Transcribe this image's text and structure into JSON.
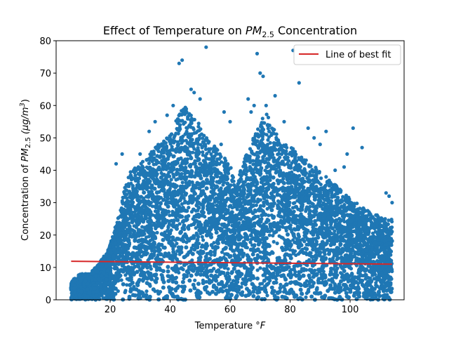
{
  "chart_data": {
    "type": "scatter",
    "title_main": "Effect of Temperature on ",
    "title_var": "PM",
    "title_sub": "2.5",
    "title_tail": " Concentration",
    "xlabel_main": "Temperature ",
    "xlabel_unit": "°F",
    "ylabel_main": "Concentration of ",
    "ylabel_var": "PM",
    "ylabel_sub": "2.5",
    "ylabel_unit": " (μg/m",
    "ylabel_exp": "3",
    "ylabel_close": ")",
    "xlim": [
      2,
      118
    ],
    "ylim": [
      0,
      80
    ],
    "x_ticks": [
      "20",
      "40",
      "60",
      "80",
      "100"
    ],
    "y_ticks": [
      "0",
      "10",
      "20",
      "30",
      "40",
      "50",
      "60",
      "70",
      "80"
    ],
    "grid": false,
    "legend_position": "top-right",
    "legend_entries": [
      "Line of best fit"
    ],
    "colors": {
      "points": "#1f77b4",
      "fit_line": "#d62728"
    },
    "fit_line": {
      "x": [
        7,
        114
      ],
      "y": [
        11.9,
        11.0
      ]
    },
    "upper_envelope": {
      "x": [
        7,
        10,
        13,
        16,
        19,
        21,
        23,
        25,
        27,
        30,
        33,
        36,
        39,
        42,
        45,
        48,
        51,
        54,
        57,
        60,
        62,
        64,
        66,
        69,
        72,
        75,
        78,
        81,
        84,
        87,
        90,
        93,
        96,
        99,
        102,
        105,
        108,
        111,
        114
      ],
      "y": [
        6,
        8,
        8,
        11,
        15,
        20,
        27,
        35,
        40,
        42,
        45,
        48,
        50,
        56,
        60,
        57,
        52,
        48,
        46,
        42,
        34,
        42,
        46,
        53,
        58,
        52,
        48,
        47,
        44,
        42,
        40,
        37,
        35,
        32,
        30,
        28,
        27,
        25,
        25
      ]
    },
    "outliers": {
      "x": [
        44,
        43,
        52,
        69,
        70,
        71,
        75,
        81,
        83,
        67,
        68,
        60,
        73,
        78,
        92,
        101,
        104,
        99,
        98,
        112,
        113,
        114,
        58,
        57,
        35,
        33,
        48,
        50,
        47,
        22,
        24,
        41,
        39,
        30,
        66,
        72,
        86,
        88,
        90,
        95
      ],
      "y": [
        74,
        73,
        78,
        76,
        70,
        69,
        63,
        77,
        67,
        58,
        60,
        55,
        52,
        55,
        52,
        53,
        47,
        45,
        41,
        33,
        32,
        30,
        58,
        48,
        55,
        52,
        64,
        62,
        65,
        42,
        45,
        60,
        57,
        45,
        62,
        60,
        53,
        50,
        48,
        40
      ]
    }
  }
}
